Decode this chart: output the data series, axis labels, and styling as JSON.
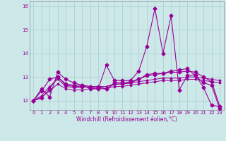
{
  "xlabel": "Windchill (Refroidissement éolien,°C)",
  "background_color": "#cde8e8",
  "grid_color": "#aacccc",
  "line_color": "#990099",
  "x": [
    0,
    1,
    2,
    3,
    4,
    5,
    6,
    7,
    8,
    9,
    10,
    11,
    12,
    13,
    14,
    15,
    16,
    17,
    18,
    19,
    20,
    21,
    22,
    23
  ],
  "series1": [
    12.0,
    12.5,
    12.15,
    13.2,
    12.9,
    12.75,
    12.65,
    12.5,
    12.5,
    13.5,
    12.85,
    12.85,
    12.85,
    13.25,
    14.3,
    15.9,
    14.0,
    15.6,
    12.45,
    13.05,
    13.1,
    12.55,
    11.8,
    11.75
  ],
  "series2": [
    12.0,
    12.1,
    12.5,
    13.0,
    12.65,
    12.6,
    12.6,
    12.55,
    12.55,
    12.5,
    12.75,
    12.75,
    12.8,
    12.9,
    13.05,
    13.1,
    13.15,
    13.2,
    13.2,
    13.25,
    13.2,
    13.0,
    12.8,
    11.75
  ],
  "series3_lo": [
    12.0,
    12.15,
    12.4,
    12.7,
    12.5,
    12.45,
    12.45,
    12.5,
    12.5,
    12.5,
    12.6,
    12.6,
    12.65,
    12.7,
    12.75,
    12.8,
    12.85,
    12.85,
    12.85,
    12.9,
    12.9,
    12.85,
    12.8,
    12.75
  ],
  "series3_hi": [
    12.0,
    12.2,
    12.6,
    12.9,
    12.6,
    12.55,
    12.55,
    12.6,
    12.6,
    12.6,
    12.7,
    12.7,
    12.75,
    12.8,
    12.85,
    12.9,
    12.95,
    12.95,
    12.95,
    13.0,
    13.0,
    12.95,
    12.9,
    12.85
  ],
  "series4": [
    12.0,
    12.4,
    12.9,
    13.0,
    12.7,
    12.65,
    12.65,
    12.6,
    12.6,
    12.5,
    12.7,
    12.7,
    12.75,
    12.9,
    13.1,
    13.15,
    13.15,
    13.25,
    13.3,
    13.35,
    13.05,
    12.75,
    12.65,
    11.65
  ],
  "ylim_min": 11.6,
  "ylim_max": 16.2,
  "yticks": [
    12,
    13,
    14,
    15,
    16
  ],
  "xticks": [
    0,
    1,
    2,
    3,
    4,
    5,
    6,
    7,
    8,
    9,
    10,
    11,
    12,
    13,
    14,
    15,
    16,
    17,
    18,
    19,
    20,
    21,
    22,
    23
  ]
}
